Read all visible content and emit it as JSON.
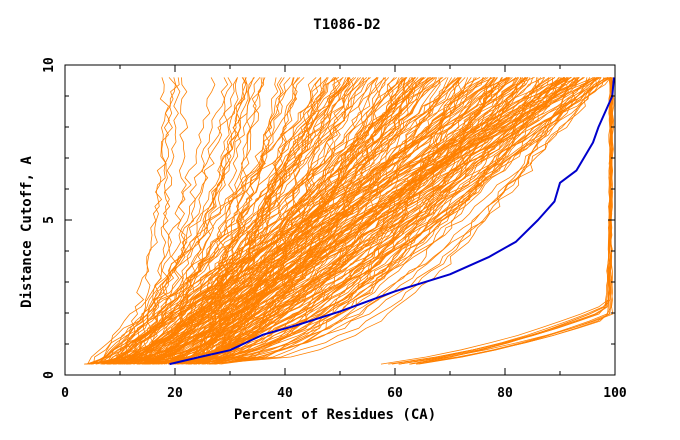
{
  "chart_data": {
    "type": "line",
    "title": "T1086-D2",
    "xlabel": "Percent of Residues (CA)",
    "ylabel": "Distance Cutoff, A",
    "xlim": [
      0,
      100
    ],
    "ylim": [
      0,
      10
    ],
    "x_ticks": [
      0,
      20,
      40,
      60,
      80,
      100
    ],
    "y_ticks": [
      0,
      5,
      10
    ],
    "grid": false,
    "legend": "none",
    "colors": {
      "background_series": "#ff8000",
      "highlight": "#0000cc"
    },
    "series": [
      {
        "x": [
          19,
          25,
          30,
          36,
          42,
          50,
          60,
          70,
          77,
          82,
          86,
          89,
          90,
          93,
          96,
          97,
          98.5,
          99.5,
          99.8
        ],
        "y": [
          0.35,
          0.6,
          0.8,
          1.3,
          1.6,
          2.05,
          2.7,
          3.25,
          3.8,
          4.3,
          5.0,
          5.6,
          6.2,
          6.6,
          7.5,
          8.0,
          8.6,
          9.0,
          9.6
        ]
      }
    ]
  }
}
